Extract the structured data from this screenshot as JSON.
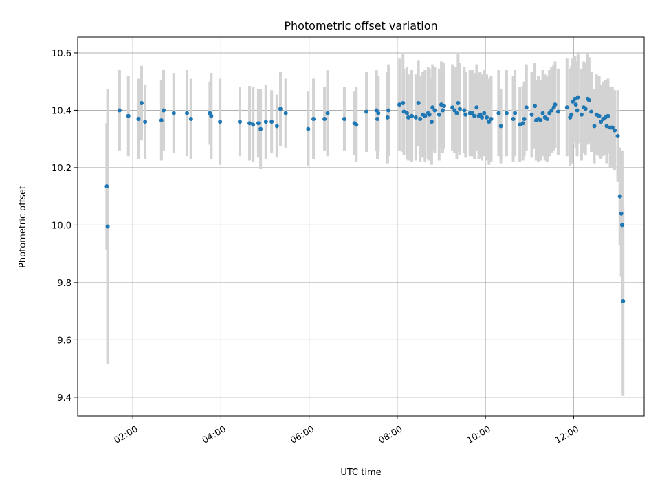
{
  "chart_data": {
    "type": "scatter",
    "title": "Photometric offset variation",
    "xlabel": "UTC time",
    "ylabel": "Photometric offset",
    "x_ticks": [
      "02:00",
      "04:00",
      "06:00",
      "08:00",
      "10:00",
      "12:00"
    ],
    "x_tick_hours": [
      2,
      4,
      6,
      8,
      10,
      12
    ],
    "xlim_hours": [
      0.75,
      13.6
    ],
    "ylim": [
      9.335,
      10.655
    ],
    "y_ticks": [
      9.4,
      9.6,
      9.8,
      10.0,
      10.2,
      10.4,
      10.6
    ],
    "grid": true,
    "legend": "none",
    "colors": {
      "point": "#1f77b4",
      "errorbar": "#d3d3d3",
      "grid": "#b0b0b0"
    },
    "series": [
      {
        "points": [
          [
            1.41,
            10.135,
            0.22
          ],
          [
            1.43,
            9.995,
            0.48
          ],
          [
            1.7,
            10.4,
            0.14
          ],
          [
            1.9,
            10.38,
            0.14
          ],
          [
            2.13,
            10.37,
            0.14
          ],
          [
            2.2,
            10.425,
            0.13
          ],
          [
            2.28,
            10.36,
            0.13
          ],
          [
            2.65,
            10.365,
            0.14
          ],
          [
            2.7,
            10.4,
            0.14
          ],
          [
            2.93,
            10.39,
            0.14
          ],
          [
            3.23,
            10.39,
            0.15
          ],
          [
            3.32,
            10.37,
            0.14
          ],
          [
            3.75,
            10.39,
            0.11
          ],
          [
            3.78,
            10.38,
            0.15
          ],
          [
            3.98,
            10.36,
            0.15
          ],
          [
            4.43,
            10.36,
            0.12
          ],
          [
            4.65,
            10.355,
            0.13
          ],
          [
            4.73,
            10.35,
            0.13
          ],
          [
            4.85,
            10.355,
            0.12
          ],
          [
            4.9,
            10.335,
            0.14
          ],
          [
            5.02,
            10.36,
            0.13
          ],
          [
            5.15,
            10.36,
            0.11
          ],
          [
            5.27,
            10.345,
            0.11
          ],
          [
            5.35,
            10.405,
            0.13
          ],
          [
            5.47,
            10.39,
            0.12
          ],
          [
            5.98,
            10.335,
            0.13
          ],
          [
            6.1,
            10.37,
            0.14
          ],
          [
            6.35,
            10.37,
            0.11
          ],
          [
            6.42,
            10.39,
            0.15
          ],
          [
            6.8,
            10.37,
            0.11
          ],
          [
            7.03,
            10.355,
            0.11
          ],
          [
            7.07,
            10.35,
            0.13
          ],
          [
            7.3,
            10.395,
            0.14
          ],
          [
            7.53,
            10.4,
            0.14
          ],
          [
            7.55,
            10.37,
            0.14
          ],
          [
            7.57,
            10.39,
            0.13
          ],
          [
            7.78,
            10.375,
            0.16
          ],
          [
            7.8,
            10.4,
            0.16
          ],
          [
            8.05,
            10.42,
            0.16
          ],
          [
            8.13,
            10.425,
            0.17
          ],
          [
            8.15,
            10.395,
            0.15
          ],
          [
            8.22,
            10.39,
            0.16
          ],
          [
            8.25,
            10.375,
            0.15
          ],
          [
            8.33,
            10.38,
            0.16
          ],
          [
            8.42,
            10.375,
            0.15
          ],
          [
            8.48,
            10.425,
            0.15
          ],
          [
            8.52,
            10.37,
            0.15
          ],
          [
            8.58,
            10.385,
            0.15
          ],
          [
            8.63,
            10.38,
            0.16
          ],
          [
            8.7,
            10.39,
            0.16
          ],
          [
            8.73,
            10.385,
            0.16
          ],
          [
            8.78,
            10.36,
            0.15
          ],
          [
            8.8,
            10.41,
            0.15
          ],
          [
            8.85,
            10.4,
            0.15
          ],
          [
            8.95,
            10.385,
            0.16
          ],
          [
            9.0,
            10.42,
            0.15
          ],
          [
            9.03,
            10.4,
            0.15
          ],
          [
            9.06,
            10.415,
            0.15
          ],
          [
            9.25,
            10.41,
            0.15
          ],
          [
            9.3,
            10.4,
            0.15
          ],
          [
            9.35,
            10.39,
            0.16
          ],
          [
            9.38,
            10.425,
            0.17
          ],
          [
            9.42,
            10.405,
            0.16
          ],
          [
            9.52,
            10.4,
            0.15
          ],
          [
            9.55,
            10.385,
            0.15
          ],
          [
            9.65,
            10.39,
            0.15
          ],
          [
            9.7,
            10.39,
            0.15
          ],
          [
            9.75,
            10.38,
            0.15
          ],
          [
            9.8,
            10.41,
            0.15
          ],
          [
            9.85,
            10.38,
            0.15
          ],
          [
            9.88,
            10.385,
            0.15
          ],
          [
            9.92,
            10.375,
            0.15
          ],
          [
            9.97,
            10.39,
            0.15
          ],
          [
            10.03,
            10.375,
            0.15
          ],
          [
            10.08,
            10.36,
            0.15
          ],
          [
            10.13,
            10.37,
            0.15
          ],
          [
            10.3,
            10.39,
            0.15
          ],
          [
            10.35,
            10.345,
            0.13
          ],
          [
            10.48,
            10.39,
            0.15
          ],
          [
            10.63,
            10.37,
            0.15
          ],
          [
            10.67,
            10.39,
            0.15
          ],
          [
            10.78,
            10.35,
            0.13
          ],
          [
            10.85,
            10.355,
            0.13
          ],
          [
            10.88,
            10.37,
            0.13
          ],
          [
            10.93,
            10.41,
            0.15
          ],
          [
            11.05,
            10.385,
            0.15
          ],
          [
            11.12,
            10.415,
            0.15
          ],
          [
            11.15,
            10.365,
            0.14
          ],
          [
            11.2,
            10.37,
            0.15
          ],
          [
            11.25,
            10.365,
            0.14
          ],
          [
            11.3,
            10.39,
            0.15
          ],
          [
            11.35,
            10.375,
            0.15
          ],
          [
            11.4,
            10.37,
            0.15
          ],
          [
            11.45,
            10.39,
            0.15
          ],
          [
            11.5,
            10.4,
            0.15
          ],
          [
            11.55,
            10.41,
            0.15
          ],
          [
            11.58,
            10.42,
            0.15
          ],
          [
            11.65,
            10.395,
            0.15
          ],
          [
            11.85,
            10.41,
            0.17
          ],
          [
            11.92,
            10.375,
            0.17
          ],
          [
            11.95,
            10.385,
            0.17
          ],
          [
            11.98,
            10.43,
            0.15
          ],
          [
            12.03,
            10.44,
            0.15
          ],
          [
            12.05,
            10.42,
            0.15
          ],
          [
            12.08,
            10.4,
            0.16
          ],
          [
            12.1,
            10.445,
            0.16
          ],
          [
            12.18,
            10.385,
            0.16
          ],
          [
            12.23,
            10.41,
            0.16
          ],
          [
            12.27,
            10.405,
            0.16
          ],
          [
            12.32,
            10.44,
            0.16
          ],
          [
            12.35,
            10.435,
            0.15
          ],
          [
            12.4,
            10.395,
            0.14
          ],
          [
            12.47,
            10.345,
            0.13
          ],
          [
            12.52,
            10.385,
            0.14
          ],
          [
            12.58,
            10.38,
            0.14
          ],
          [
            12.62,
            10.36,
            0.13
          ],
          [
            12.67,
            10.37,
            0.13
          ],
          [
            12.72,
            10.375,
            0.13
          ],
          [
            12.75,
            10.345,
            0.13
          ],
          [
            12.78,
            10.38,
            0.13
          ],
          [
            12.83,
            10.34,
            0.14
          ],
          [
            12.88,
            10.34,
            0.14
          ],
          [
            12.93,
            10.33,
            0.14
          ],
          [
            13.0,
            10.31,
            0.16
          ],
          [
            13.05,
            10.1,
            0.17
          ],
          [
            13.08,
            10.04,
            0.22
          ],
          [
            13.1,
            10.0,
            0.26
          ],
          [
            13.12,
            9.735,
            0.33
          ]
        ]
      }
    ]
  }
}
